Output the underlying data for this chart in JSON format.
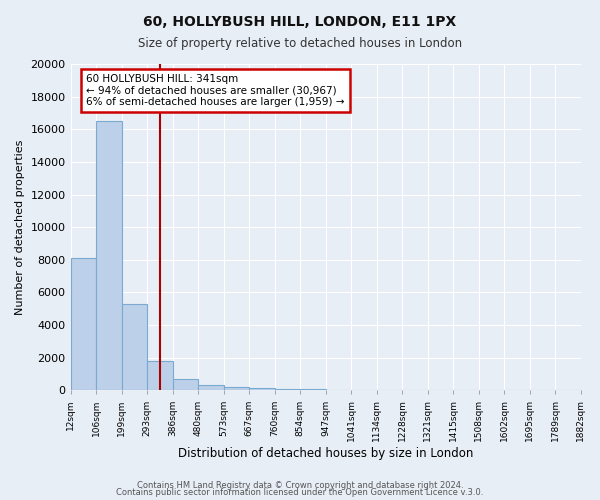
{
  "title": "60, HOLLYBUSH HILL, LONDON, E11 1PX",
  "subtitle": "Size of property relative to detached houses in London",
  "xlabel": "Distribution of detached houses by size in London",
  "ylabel": "Number of detached properties",
  "bin_labels": [
    "12sqm",
    "106sqm",
    "199sqm",
    "293sqm",
    "386sqm",
    "480sqm",
    "573sqm",
    "667sqm",
    "760sqm",
    "854sqm",
    "947sqm",
    "1041sqm",
    "1134sqm",
    "1228sqm",
    "1321sqm",
    "1415sqm",
    "1508sqm",
    "1602sqm",
    "1695sqm",
    "1789sqm",
    "1882sqm"
  ],
  "bin_edges": [
    12,
    106,
    199,
    293,
    386,
    480,
    573,
    667,
    760,
    854,
    947,
    1041,
    1134,
    1228,
    1321,
    1415,
    1508,
    1602,
    1695,
    1789,
    1882
  ],
  "bar_heights": [
    8100,
    16500,
    5300,
    1800,
    700,
    300,
    200,
    150,
    100,
    50,
    30,
    20,
    15,
    10,
    8,
    6,
    5,
    4,
    3,
    2
  ],
  "bar_color": "#bdd0e9",
  "bar_edge_color": "#7aaad0",
  "property_size": 341,
  "vline_color": "#aa0000",
  "annotation_line1": "60 HOLLYBUSH HILL: 341sqm",
  "annotation_line2": "← 94% of detached houses are smaller (30,967)",
  "annotation_line3": "6% of semi-detached houses are larger (1,959) →",
  "annotation_box_edge_color": "#cc0000",
  "ylim": [
    0,
    20000
  ],
  "yticks": [
    0,
    2000,
    4000,
    6000,
    8000,
    10000,
    12000,
    14000,
    16000,
    18000,
    20000
  ],
  "footer_line1": "Contains HM Land Registry data © Crown copyright and database right 2024.",
  "footer_line2": "Contains public sector information licensed under the Open Government Licence v.3.0.",
  "bg_color": "#e8eef6",
  "plot_bg_color": "#e8eef6"
}
